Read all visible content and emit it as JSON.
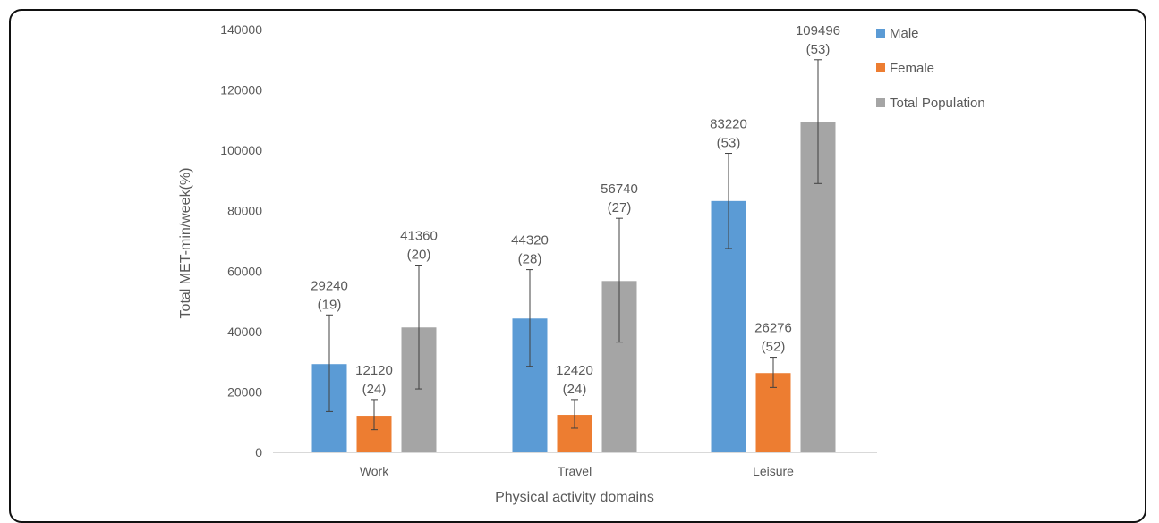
{
  "chart_data": {
    "type": "bar",
    "title": "",
    "xlabel": "Physical activity domains",
    "ylabel": "Total MET-min/week(%)",
    "ylim": [
      0,
      140000
    ],
    "yticks": [
      "0",
      "20000",
      "40000",
      "60000",
      "80000",
      "100000",
      "120000",
      "140000"
    ],
    "categories": [
      "Work",
      "Travel",
      "Leisure"
    ],
    "grid": false,
    "legend_position": "top-right",
    "series": [
      {
        "name": "Male",
        "color": "#5b9bd5",
        "values": [
          29240,
          44320,
          83220
        ],
        "percent_labels": [
          "(19)",
          "(28)",
          "(53)"
        ],
        "error_low": [
          13500,
          28500,
          67500
        ],
        "error_high": [
          45500,
          60500,
          99000
        ]
      },
      {
        "name": "Female",
        "color": "#ed7d31",
        "values": [
          12120,
          12420,
          26276
        ],
        "percent_labels": [
          "(24)",
          "(24)",
          "(52)"
        ],
        "error_low": [
          7500,
          8000,
          21500
        ],
        "error_high": [
          17500,
          17500,
          31500
        ]
      },
      {
        "name": "Total Population",
        "color": "#a5a5a5",
        "values": [
          41360,
          56740,
          109496
        ],
        "percent_labels": [
          "(20)",
          "(27)",
          "(53)"
        ],
        "error_low": [
          21000,
          36500,
          89000
        ],
        "error_high": [
          62000,
          77500,
          130000
        ]
      }
    ]
  }
}
